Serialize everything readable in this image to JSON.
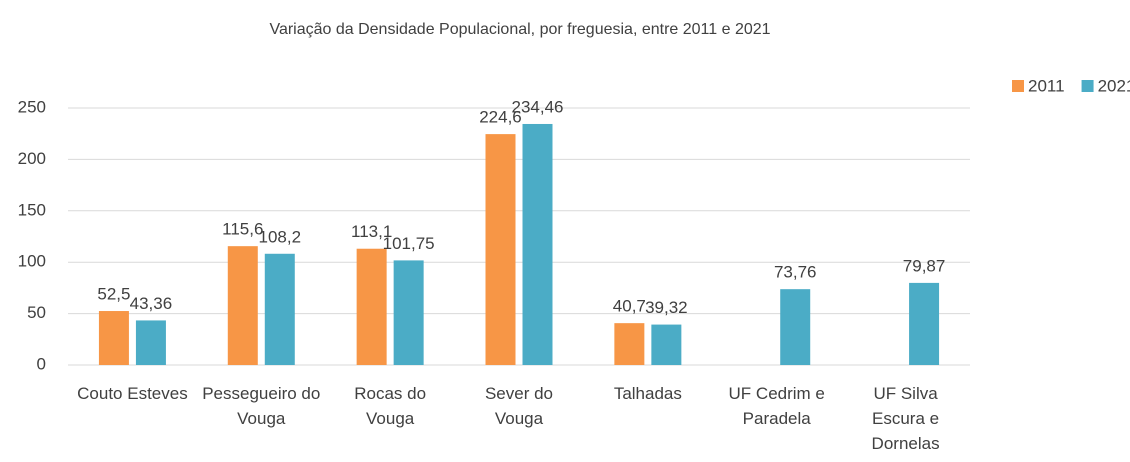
{
  "chart_data": {
    "type": "bar",
    "title": "Variação da Densidade Populacional, por freguesia, entre 2011 e 2021",
    "categories": [
      "Couto Esteves",
      "Pessegueiro do Vouga",
      "Rocas do Vouga",
      "Sever do Vouga",
      "Talhadas",
      "UF Cedrim e Paradela",
      "UF Silva Escura e Dornelas"
    ],
    "series": [
      {
        "name": "2011",
        "color": "#f79646",
        "values": [
          52.5,
          115.6,
          113.1,
          224.6,
          40.7,
          null,
          null
        ],
        "value_labels": [
          "52,5",
          "115,6",
          "113,1",
          "224,6",
          "40,7",
          null,
          null
        ]
      },
      {
        "name": "2021",
        "color": "#4bacc6",
        "values": [
          43.36,
          108.2,
          101.75,
          234.46,
          39.32,
          73.76,
          79.87
        ],
        "value_labels": [
          "43,36",
          "108,2",
          "101,75",
          "234,46",
          "39,32",
          "73,76",
          "79,87"
        ]
      }
    ],
    "ylim": [
      0,
      250
    ],
    "yticks": [
      0,
      50,
      100,
      150,
      200,
      250
    ],
    "grid": true,
    "legend": "top-right"
  }
}
